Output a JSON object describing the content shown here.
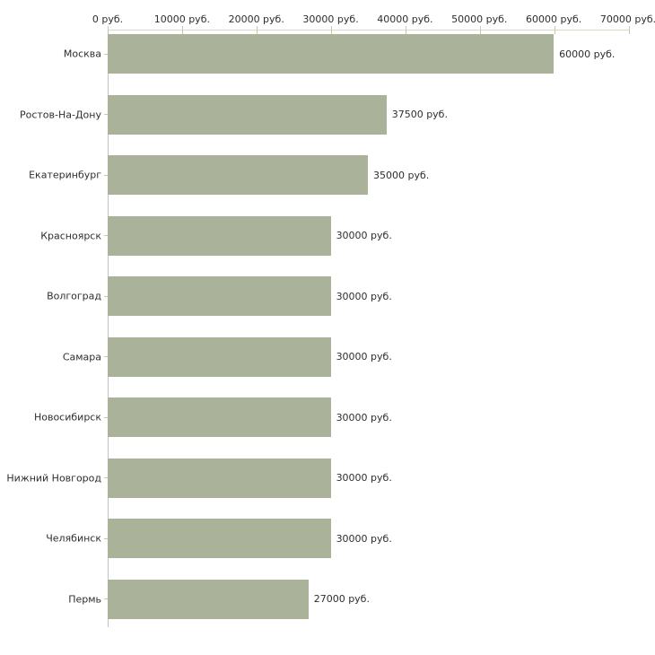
{
  "chart_data": {
    "type": "bar",
    "orientation": "horizontal",
    "title": "",
    "xlabel": "",
    "ylabel": "",
    "grid": false,
    "legend": false,
    "xlim": [
      0,
      70000
    ],
    "x_ticks": [
      0,
      10000,
      20000,
      30000,
      40000,
      50000,
      60000,
      70000
    ],
    "x_tick_labels": [
      "0 руб.",
      "10000 руб.",
      "20000 руб.",
      "30000 руб.",
      "40000 руб.",
      "50000 руб.",
      "60000 руб.",
      "70000 руб."
    ],
    "categories": [
      "Москва",
      "Ростов-На-Дону",
      "Екатеринбург",
      "Красноярск",
      "Волгоград",
      "Самара",
      "Новосибирск",
      "Нижний Новгород",
      "Челябинск",
      "Пермь"
    ],
    "values": [
      60000,
      37500,
      35000,
      30000,
      30000,
      30000,
      30000,
      30000,
      30000,
      27000
    ],
    "bar_value_labels": [
      "60000 руб.",
      "37500 руб.",
      "35000 руб.",
      "30000 руб.",
      "30000 руб.",
      "30000 руб.",
      "30000 руб.",
      "30000 руб.",
      "30000 руб.",
      "27000 руб."
    ],
    "colors": {
      "bar": "#abb29a",
      "axis_top_line": "#d9d9c8",
      "axis_left_line": "#c2c2c2",
      "tick": "#ccca9e",
      "text": "#2e2e2e",
      "background": "#ffffff"
    }
  }
}
